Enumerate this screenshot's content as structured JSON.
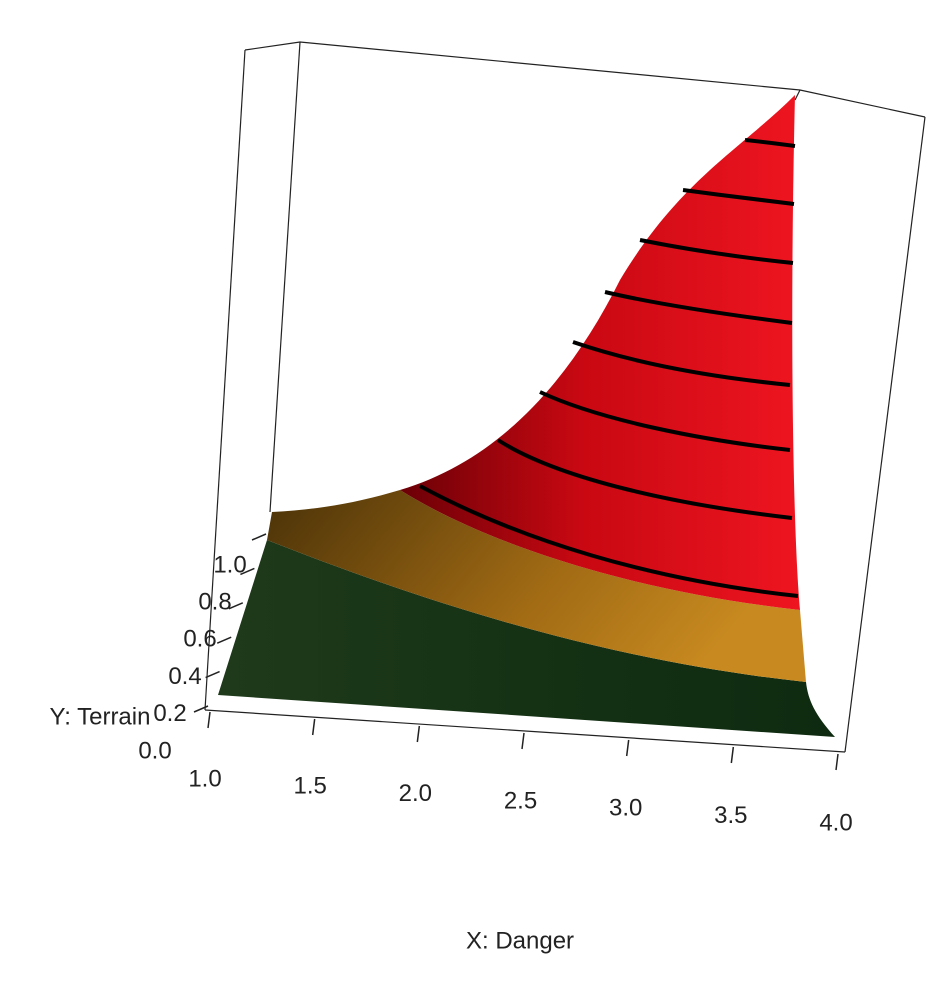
{
  "chart_data": {
    "type": "surface",
    "xlabel": "X: Danger",
    "ylabel": "Y: Terrain",
    "xlim": [
      1,
      4
    ],
    "ylim": [
      0,
      1
    ],
    "xticks": [
      {
        "value": 1,
        "label": "1.0"
      },
      {
        "value": 1.5,
        "label": "1.5"
      },
      {
        "value": 2,
        "label": "2.0"
      },
      {
        "value": 2.5,
        "label": "2.5"
      },
      {
        "value": 3,
        "label": "3.0"
      },
      {
        "value": 3.5,
        "label": "3.5"
      },
      {
        "value": 4,
        "label": "4.0"
      }
    ],
    "yticks": [
      {
        "value": 0,
        "label": "0.0"
      },
      {
        "value": 0.2,
        "label": "0.2"
      },
      {
        "value": 0.4,
        "label": "0.4"
      },
      {
        "value": 0.6,
        "label": "0.6"
      },
      {
        "value": 0.8,
        "label": "0.8"
      },
      {
        "value": 1,
        "label": "1.0"
      }
    ]
  }
}
